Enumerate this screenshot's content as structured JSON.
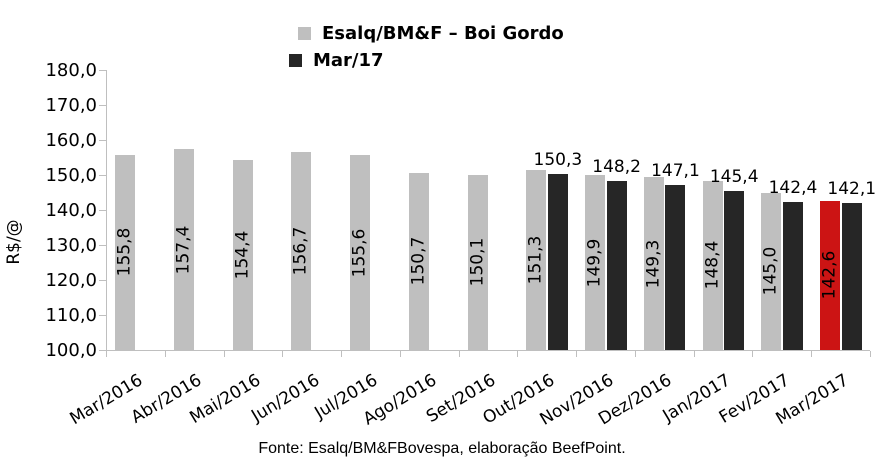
{
  "chart_data": {
    "type": "bar",
    "title": "",
    "xlabel": "",
    "ylabel": "R$/@",
    "ylim": [
      100,
      180
    ],
    "grid": false,
    "legend_position": "top-center",
    "yticks": [
      {
        "value": 180,
        "label": "180,0"
      },
      {
        "value": 170,
        "label": "170,0"
      },
      {
        "value": 160,
        "label": "160,0"
      },
      {
        "value": 150,
        "label": "150,0"
      },
      {
        "value": 140,
        "label": "140,0"
      },
      {
        "value": 130,
        "label": "130,0"
      },
      {
        "value": 120,
        "label": "120,0"
      },
      {
        "value": 110,
        "label": "110,0"
      },
      {
        "value": 100,
        "label": "100,0"
      }
    ],
    "categories": [
      "Mar/2016",
      "Abr/2016",
      "Mai/2016",
      "Jun/2016",
      "Jul/2016",
      "Ago/2016",
      "Set/2016",
      "Out/2016",
      "Nov/2016",
      "Dez/2016",
      "Jan/2017",
      "Fev/2017",
      "Mar/2017"
    ],
    "series": [
      {
        "name": "Esalq/BM&F – Boi Gordo",
        "color": "#bfbfbf",
        "label_placement": "inside-vertical",
        "values": [
          155.8,
          157.4,
          154.4,
          156.7,
          155.6,
          150.7,
          150.1,
          151.3,
          149.9,
          149.3,
          148.4,
          145.0,
          142.6
        ],
        "labels": [
          "155,8",
          "157,4",
          "154,4",
          "156,7",
          "155,6",
          "150,7",
          "150,1",
          "151,3",
          "149,9",
          "149,3",
          "148,4",
          "145,0",
          "142,6"
        ]
      },
      {
        "name": "Mar/17",
        "color": "#262626",
        "label_placement": "above-horizontal",
        "values": [
          null,
          null,
          null,
          null,
          null,
          null,
          null,
          150.3,
          148.2,
          147.1,
          145.4,
          142.4,
          142.1
        ],
        "labels": [
          null,
          null,
          null,
          null,
          null,
          null,
          null,
          "150,3",
          "148,2",
          "147,1",
          "145,4",
          "142,4",
          "142,1"
        ]
      }
    ],
    "highlight": {
      "series_index": 0,
      "category_index": 12,
      "color": "#cc1414"
    },
    "axis_color": "#bfbfbf"
  },
  "footer": {
    "source": "Fonte: Esalq/BM&FBovespa, elaboração BeefPoint."
  }
}
